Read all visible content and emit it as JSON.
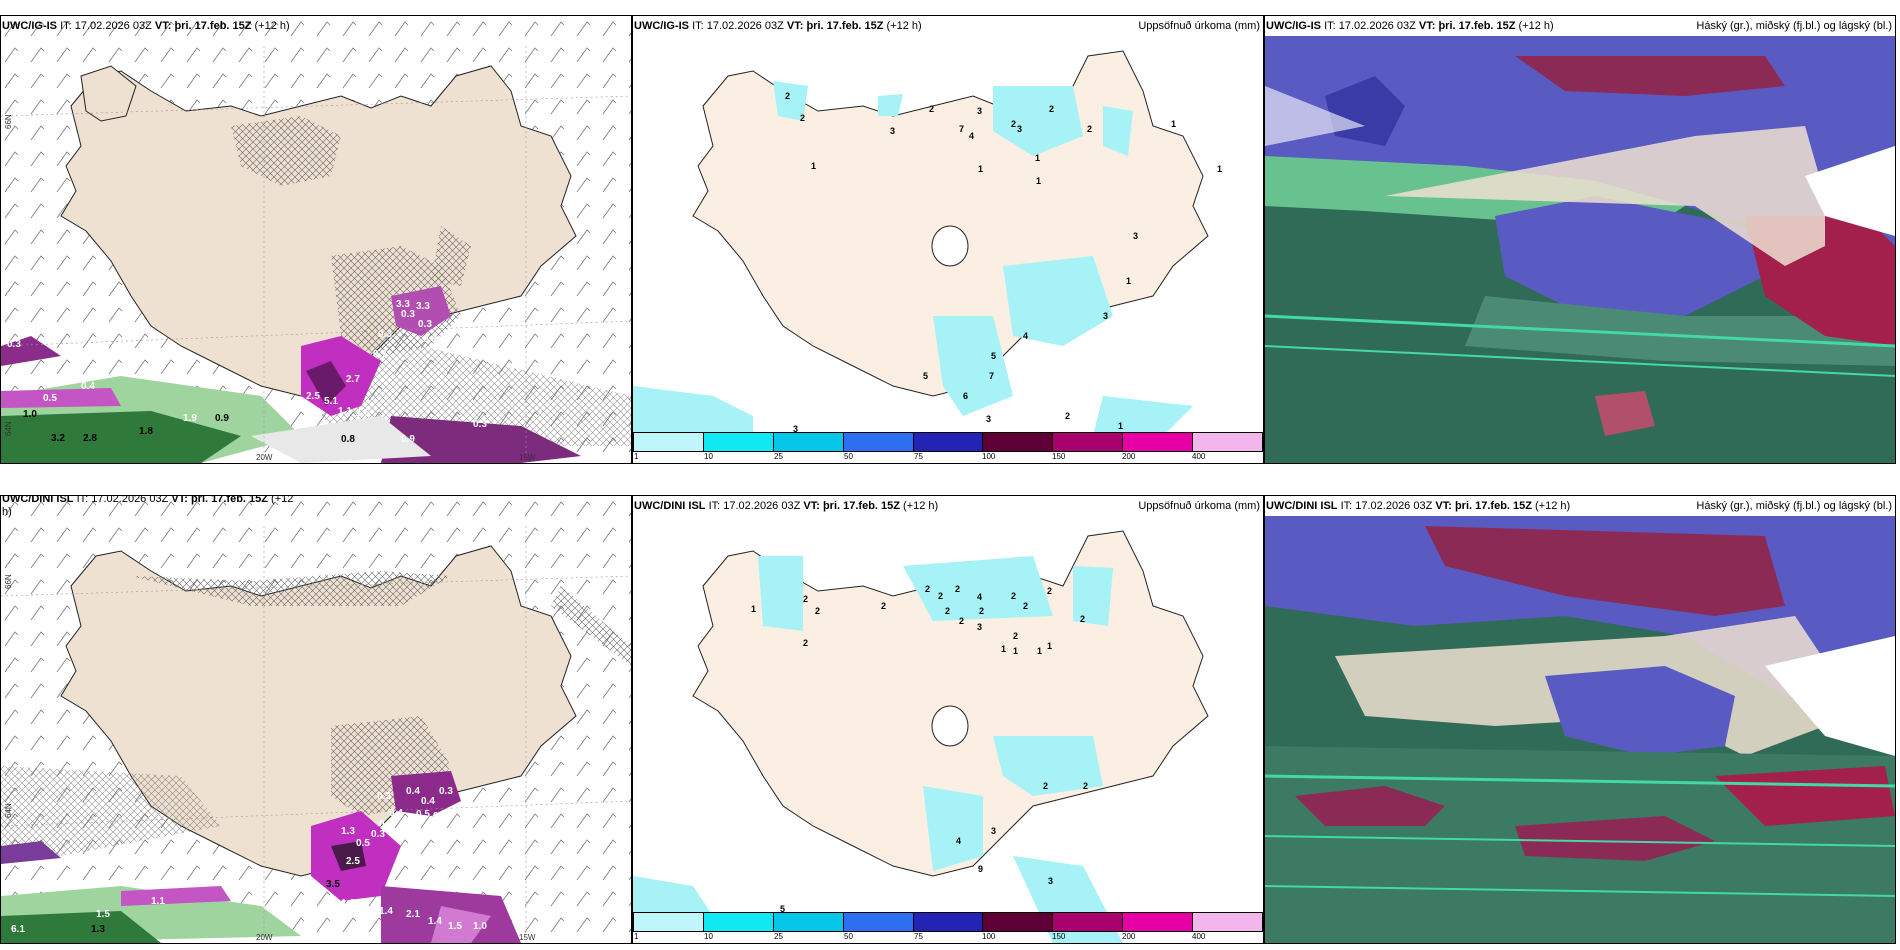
{
  "panels": {
    "top_left": {
      "model": "UWC/IG-IS",
      "it_label": "IT:",
      "it": "17.02.2026 03Z",
      "vt_label": "VT:",
      "vt": "þri. 17.feb. 15Z",
      "lead": "(+12 h)"
    },
    "top_mid": {
      "model": "UWC/IG-IS",
      "it_label": "IT:",
      "it": "17.02.2026 03Z",
      "vt_label": "VT:",
      "vt": "þri. 17.feb. 15Z",
      "lead": "(+12 h)",
      "title": "Uppsöfnuð úrkoma (mm)"
    },
    "top_right": {
      "model": "UWC/IG-IS",
      "it_label": "IT:",
      "it": "17.02.2026 03Z",
      "vt_label": "VT:",
      "vt": "þri. 17.feb. 15Z",
      "lead": "(+12 h)",
      "title": "Háský (gr.), miðský (fj.bl.) og lágský (bl.)"
    },
    "bot_left": {
      "model": "UWC/DINI ISL",
      "it_label": "IT:",
      "it": "17.02.2026 03Z",
      "vt_label": "VT:",
      "vt": "þri. 17.feb. 15Z",
      "lead_a": "(+12",
      "lead_b": "h)"
    },
    "bot_mid": {
      "model": "UWC/DINI ISL",
      "it_label": "IT:",
      "it": "17.02.2026 03Z",
      "vt_label": "VT:",
      "vt": "þri. 17.feb. 15Z",
      "lead": "(+12 h)",
      "title": "Uppsöfnuð úrkoma (mm)"
    },
    "bot_right": {
      "model": "UWC/DINI ISL",
      "it_label": "IT:",
      "it": "17.02.2026 03Z",
      "vt_label": "VT:",
      "vt": "þri. 17.feb. 15Z",
      "lead": "(+12 h)",
      "title": "Háský (gr.), miðský (fj.bl.) og lágský (bl.)"
    }
  },
  "axes": {
    "lat66": "66N",
    "lat64": "64N",
    "lon20": "20W",
    "lon15": "15W"
  },
  "colorbar": {
    "ticks": [
      "1",
      "10",
      "25",
      "50",
      "75",
      "100",
      "150",
      "200",
      "400"
    ],
    "colors": [
      "#bff6fb",
      "#10e8f4",
      "#06c6ea",
      "#2d6ff0",
      "#2323b4",
      "#5e0036",
      "#a8006c",
      "#e600a6",
      "#f3b6ec"
    ]
  },
  "top_left_values": [
    "0.3",
    "0.5",
    "0.4",
    "1.0",
    "3.2",
    "2.8",
    "1.8",
    "1.9",
    "0.9",
    "0.8",
    "0.3",
    "0.9",
    "2.5",
    "2.7",
    "5.1",
    "1.1",
    "1.5",
    "0.7",
    "0.3",
    "0.3",
    "0.3",
    "0.8",
    "3.3",
    "3.3"
  ],
  "bot_left_values": [
    "6.1",
    "1.3",
    "1.5",
    "1.1",
    "1.4",
    "1.6",
    "2.1",
    "1.4",
    "1.5",
    "1.0",
    "0.3",
    "3.5",
    "1.3",
    "0.5",
    "0.4",
    "0.4",
    "0.3",
    "0.3",
    "0.4",
    "0.4",
    "0.3",
    "0.5",
    "0.4",
    "2.5"
  ],
  "top_mid_values": [
    "2",
    "2",
    "1",
    "3",
    "2",
    "7",
    "4",
    "3",
    "2",
    "3",
    "2",
    "2",
    "1",
    "1",
    "1",
    "1",
    "3",
    "4",
    "5",
    "7",
    "5",
    "6",
    "3",
    "2",
    "1",
    "3",
    "3",
    "1",
    "1"
  ],
  "bot_mid_values": [
    "1",
    "2",
    "2",
    "2",
    "2",
    "2",
    "2",
    "2",
    "2",
    "2",
    "4",
    "2",
    "3",
    "2",
    "2",
    "1",
    "1",
    "1",
    "1",
    "2",
    "2",
    "2",
    "2",
    "4",
    "3",
    "9",
    "3",
    "5",
    "2"
  ]
}
